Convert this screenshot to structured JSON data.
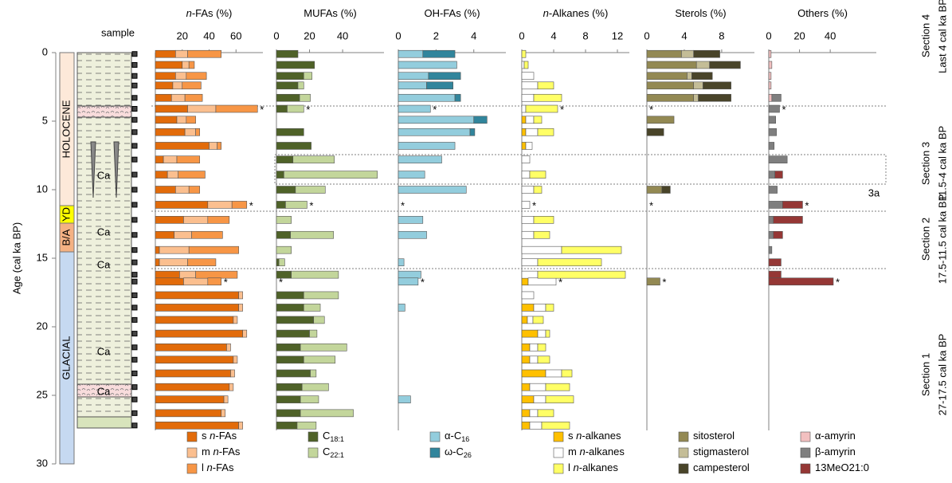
{
  "chart_data": {
    "type": "stacked-bar-panels",
    "y_label": "Age (cal ka BP)",
    "ylim": [
      0,
      30
    ],
    "yticks": [
      0,
      5,
      10,
      15,
      20,
      25,
      30
    ],
    "ages": [
      0.1,
      0.9,
      1.7,
      2.4,
      3.3,
      4.1,
      4.9,
      5.8,
      6.8,
      7.8,
      8.9,
      10.0,
      11.1,
      12.2,
      13.3,
      14.4,
      15.3,
      16.2,
      16.7,
      17.7,
      18.6,
      19.5,
      20.5,
      21.5,
      22.4,
      23.4,
      24.4,
      25.3,
      26.3,
      27.2
    ],
    "sample_label": "sample",
    "periods": [
      "HOLOCENE",
      "YD",
      "B/A",
      "GLACIAL"
    ],
    "lithology_labels": [
      "Ca",
      "Ca",
      "Ca",
      "Ca",
      "Ca"
    ],
    "sections": [
      {
        "title": "Section 4",
        "range": "Last 4 cal ka BP"
      },
      {
        "title": "Section 3",
        "range": "11.5-4 cal ka BP"
      },
      {
        "title": "Section 2",
        "range": "17.5-11.5 cal ka BP"
      },
      {
        "title": "Section 1",
        "range": "27-17.5 cal ka BP"
      }
    ],
    "subsection_label": "3a",
    "flag_text": "*",
    "flagged_samples": [
      5,
      12,
      18
    ],
    "panels": [
      {
        "type": "hbar-stack",
        "title": "n-FAs (%)",
        "xlim": [
          0,
          80
        ],
        "xticks": [
          20,
          40,
          60
        ],
        "series": [
          {
            "name": "s n-FAs",
            "color": "#e26b0a",
            "values": [
              15,
              20,
              15,
              13,
              12,
              24,
              16,
              22,
              40,
              6,
              9,
              15,
              39,
              21,
              14,
              3,
              3,
              18,
              21,
              62,
              62,
              58,
              65,
              53,
              58,
              56,
              55,
              51,
              49,
              62
            ]
          },
          {
            "name": "m n-FAs",
            "color": "#fbbf8f",
            "values": [
              9,
              5,
              8,
              7,
              10,
              21,
              7,
              8,
              6,
              10,
              8,
              10,
              18,
              18,
              13,
              22,
              21,
              12,
              18,
              3,
              3,
              3,
              3,
              3,
              3,
              3,
              3,
              3,
              3,
              3
            ]
          },
          {
            "name": "l n-FAs",
            "color": "#f79646",
            "values": [
              25,
              4,
              15,
              14,
              13,
              31,
              7,
              3,
              3,
              17,
              20,
              8,
              11,
              16,
              23,
              37,
              21,
              31,
              10,
              0,
              0,
              0,
              0,
              0,
              0,
              0,
              0,
              0,
              0,
              0
            ]
          }
        ]
      },
      {
        "type": "hbar-stack",
        "title": "MUFAs (%)",
        "xlim": [
          0,
          65
        ],
        "xticks": [
          0,
          20,
          40
        ],
        "subscript_names": true,
        "series": [
          {
            "name": "C18:1",
            "color": "#4f6228",
            "values": [
              13,
              23,
              16.5,
              13,
              14,
              6.5,
              0,
              16.5,
              21,
              10,
              4.5,
              11.5,
              5.5,
              0,
              8.5,
              0,
              1.5,
              9,
              0,
              16.5,
              16.5,
              22.5,
              20,
              14.5,
              16.5,
              20.5,
              15.5,
              14.5,
              14.5,
              12.5
            ]
          },
          {
            "name": "C22:1",
            "color": "#c3d69b",
            "values": [
              0,
              0,
              5,
              3.5,
              6.5,
              10,
              0,
              0,
              0,
              25,
              56.5,
              18,
              13,
              9,
              26,
              9,
              3.5,
              28.5,
              0,
              21,
              10,
              6.5,
              4.5,
              28,
              19,
              3.5,
              16,
              11,
              32,
              11.5
            ]
          }
        ]
      },
      {
        "type": "hbar-stack",
        "title": "OH-FAs (%)",
        "xlim": [
          0,
          5.7
        ],
        "xticks": [
          0,
          2,
          4
        ],
        "subscript_names": true,
        "series": [
          {
            "name": "α-C16",
            "color": "#93cddd",
            "values": [
              1.3,
              3.1,
              1.6,
              1.5,
              3.0,
              1.7,
              4.0,
              3.8,
              3.0,
              2.3,
              1.4,
              3.6,
              0,
              1.3,
              1.5,
              0,
              0.3,
              1.2,
              1.05,
              0,
              0.35,
              0,
              0,
              0,
              0,
              0,
              0,
              0.65,
              0,
              0
            ]
          },
          {
            "name": "ω-C26",
            "color": "#31859c",
            "values": [
              1.7,
              0,
              1.7,
              1.4,
              0.3,
              0,
              0.7,
              0.25,
              0,
              0,
              0,
              0,
              0,
              0,
              0,
              0,
              0,
              0,
              0,
              0,
              0,
              0,
              0,
              0,
              0,
              0,
              0,
              0,
              0,
              0
            ]
          }
        ]
      },
      {
        "type": "hbar-stack",
        "title": "n-Alkanes (%)",
        "xlim": [
          0,
          13.5
        ],
        "xticks": [
          0,
          4,
          8,
          12
        ],
        "series": [
          {
            "name": "s n-alkanes",
            "color": "#ffc000",
            "values": [
              0,
              0,
              0,
              0,
              0,
              0,
              0.5,
              0.5,
              0.5,
              0,
              0,
              0,
              0,
              0,
              0,
              0,
              0,
              0,
              0.8,
              0,
              1.5,
              0.7,
              2,
              1,
              1,
              3,
              1,
              1.5,
              1,
              1
            ]
          },
          {
            "name": "m n-alkanes",
            "color": "#ffffff",
            "values": [
              0,
              0.3,
              1.5,
              2,
              1.5,
              0.5,
              1,
              1.5,
              0.8,
              1,
              1,
              1.5,
              1,
              1.5,
              1.5,
              5,
              2,
              2,
              3.5,
              1.5,
              1.5,
              0.7,
              1,
              1,
              1,
              2,
              2,
              1.5,
              1,
              1.5
            ]
          },
          {
            "name": "l n-alkanes",
            "color": "#ffff66",
            "values": [
              0.5,
              0.5,
              0,
              2,
              3.5,
              4,
              1,
              2,
              0,
              0,
              2,
              1,
              0,
              2.5,
              2,
              7.5,
              8,
              11,
              0,
              0,
              1,
              1.3,
              0.5,
              1,
              1.5,
              1.3,
              3,
              3.5,
              2,
              3.5
            ]
          }
        ]
      },
      {
        "type": "hbar-stack",
        "title": "Sterols (%)",
        "xlim": [
          0,
          11.5
        ],
        "xticks": [
          0,
          4,
          8
        ],
        "series": [
          {
            "name": "sitosterol",
            "color": "#938953",
            "values": [
              3.7,
              5.3,
              4.3,
              5,
              5,
              0,
              2.9,
              0,
              0,
              0,
              0,
              1.6,
              0,
              0,
              0,
              0,
              0,
              0,
              1.4,
              0,
              0,
              0,
              0,
              0,
              0,
              0,
              0,
              0,
              0,
              0
            ]
          },
          {
            "name": "stigmasterol",
            "color": "#c4bd97",
            "values": [
              1.3,
              1.4,
              0.5,
              1,
              0.5,
              0,
              0,
              0,
              0,
              0,
              0,
              0,
              0,
              0,
              0,
              0,
              0,
              0,
              0,
              0,
              0,
              0,
              0,
              0,
              0,
              0,
              0,
              0,
              0,
              0
            ]
          },
          {
            "name": "campesterol",
            "color": "#494429",
            "values": [
              2.8,
              3.3,
              2.2,
              3,
              3.5,
              0,
              0,
              1.8,
              0,
              0,
              0,
              0.9,
              0,
              0,
              0,
              0,
              0,
              0,
              0,
              0,
              0,
              0,
              0,
              0,
              0,
              0,
              0,
              0,
              0,
              0
            ]
          }
        ]
      },
      {
        "type": "hbar-stack",
        "title": "Others (%)",
        "xlim": [
          0,
          70
        ],
        "xticks": [
          0,
          20,
          40
        ],
        "series": [
          {
            "name": "α-amyrin",
            "color": "#f2c0c0",
            "values": [
              1.5,
              2,
              1.5,
              1.5,
              2,
              0,
              0,
              0,
              0,
              0,
              0,
              0,
              0,
              0,
              0,
              0,
              0,
              0,
              0,
              0,
              0,
              0,
              0,
              0,
              0,
              0,
              0,
              0,
              0,
              0
            ]
          },
          {
            "name": "β-amyrin",
            "color": "#7f7f7f",
            "values": [
              0,
              0,
              0,
              0,
              6,
              7,
              4.5,
              5,
              3.5,
              12,
              4,
              5.5,
              9,
              3,
              3,
              2,
              0,
              0,
              0,
              0,
              0,
              0,
              0,
              0,
              0,
              0,
              0,
              0,
              0,
              0
            ]
          },
          {
            "name": "13MeO21:0",
            "color": "#953735",
            "values": [
              0,
              0,
              0,
              0,
              0,
              0,
              0,
              0,
              0,
              0,
              5,
              0,
              13,
              19,
              6,
              0,
              8,
              8,
              42,
              0,
              0,
              0,
              0,
              0,
              0,
              0,
              0,
              0,
              0,
              0
            ]
          }
        ]
      }
    ]
  }
}
